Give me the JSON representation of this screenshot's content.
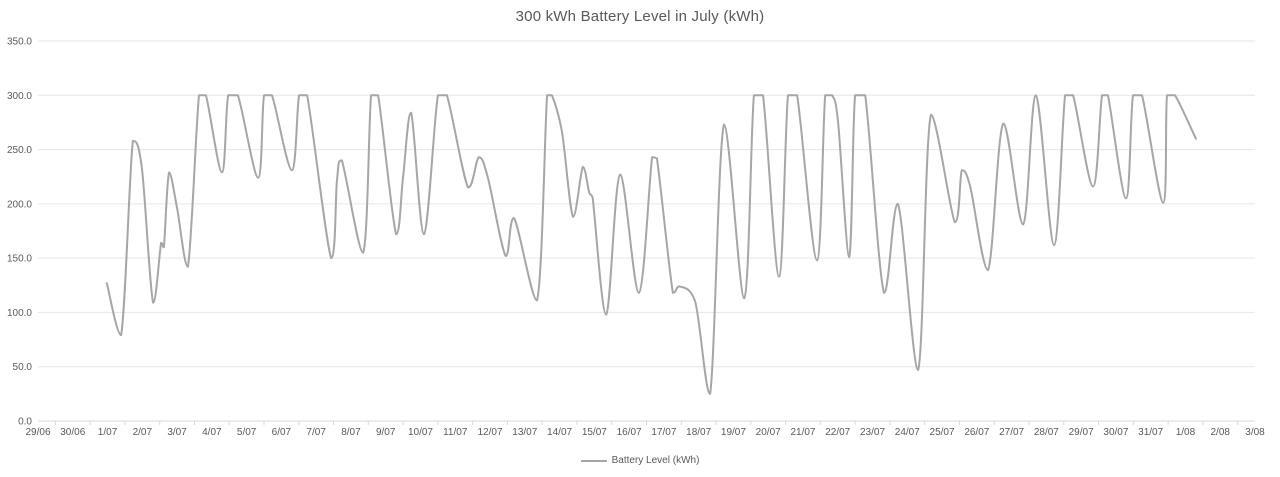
{
  "chart_data": {
    "type": "line",
    "title": "300 kWh Battery Level in July (kWh)",
    "xlabel": "",
    "ylabel": "",
    "ylim": [
      0,
      350
    ],
    "y_tick_labels": [
      "0.0",
      "50.0",
      "100.0",
      "150.0",
      "200.0",
      "250.0",
      "300.0",
      "350.0"
    ],
    "x_tick_labels": [
      "29/06",
      "30/06",
      "1/07",
      "2/07",
      "3/07",
      "4/07",
      "5/07",
      "6/07",
      "7/07",
      "8/07",
      "9/07",
      "10/07",
      "11/07",
      "12/07",
      "13/07",
      "14/07",
      "15/07",
      "16/07",
      "17/07",
      "18/07",
      "19/07",
      "20/07",
      "21/07",
      "22/07",
      "23/07",
      "24/07",
      "25/07",
      "26/07",
      "27/07",
      "28/07",
      "29/07",
      "30/07",
      "31/07",
      "1/08",
      "2/08",
      "3/08"
    ],
    "x_domain_days": [
      0,
      35
    ],
    "grid": true,
    "legend_position": "bottom-center",
    "series": [
      {
        "name": "Battery Level (kWh)",
        "color": "#a6a6a6",
        "x_unit_note": "x = fractional days along category axis; 0 = 29/06 tick, 2 = 1/07 tick",
        "points": [
          [
            1.98,
            127
          ],
          [
            2.39,
            79
          ],
          [
            2.73,
            258
          ],
          [
            2.99,
            232
          ],
          [
            3.31,
            109
          ],
          [
            3.54,
            164
          ],
          [
            3.62,
            160
          ],
          [
            3.77,
            229
          ],
          [
            4.0,
            196
          ],
          [
            4.31,
            142
          ],
          [
            4.63,
            300
          ],
          [
            4.83,
            300
          ],
          [
            5.29,
            229
          ],
          [
            5.47,
            300
          ],
          [
            5.75,
            300
          ],
          [
            6.33,
            224
          ],
          [
            6.5,
            300
          ],
          [
            6.73,
            300
          ],
          [
            7.3,
            231
          ],
          [
            7.51,
            300
          ],
          [
            7.74,
            300
          ],
          [
            8.43,
            150
          ],
          [
            8.6,
            222
          ],
          [
            8.74,
            240
          ],
          [
            9.35,
            155
          ],
          [
            9.58,
            300
          ],
          [
            9.78,
            300
          ],
          [
            10.3,
            172
          ],
          [
            10.5,
            225
          ],
          [
            10.73,
            284
          ],
          [
            11.1,
            172
          ],
          [
            11.5,
            300
          ],
          [
            11.76,
            300
          ],
          [
            12.37,
            215
          ],
          [
            12.68,
            243
          ],
          [
            12.94,
            224
          ],
          [
            13.45,
            152
          ],
          [
            13.69,
            187
          ],
          [
            14.35,
            111
          ],
          [
            14.64,
            300
          ],
          [
            14.78,
            300
          ],
          [
            15.07,
            266
          ],
          [
            15.39,
            188
          ],
          [
            15.67,
            234
          ],
          [
            15.85,
            211
          ],
          [
            15.95,
            206
          ],
          [
            16.34,
            98
          ],
          [
            16.74,
            227
          ],
          [
            17.28,
            118
          ],
          [
            17.66,
            243
          ],
          [
            17.8,
            242
          ],
          [
            18.26,
            118
          ],
          [
            18.45,
            124
          ],
          [
            18.9,
            110
          ],
          [
            19.33,
            25
          ],
          [
            19.73,
            273
          ],
          [
            20.31,
            113
          ],
          [
            20.59,
            300
          ],
          [
            20.85,
            300
          ],
          [
            21.31,
            133
          ],
          [
            21.57,
            300
          ],
          [
            21.83,
            300
          ],
          [
            22.4,
            148
          ],
          [
            22.64,
            300
          ],
          [
            22.84,
            300
          ],
          [
            23.01,
            275
          ],
          [
            23.33,
            151
          ],
          [
            23.5,
            300
          ],
          [
            23.79,
            300
          ],
          [
            24.33,
            118
          ],
          [
            24.73,
            200
          ],
          [
            25.31,
            47
          ],
          [
            25.68,
            282
          ],
          [
            26.37,
            183
          ],
          [
            26.57,
            231
          ],
          [
            26.81,
            216
          ],
          [
            27.32,
            139
          ],
          [
            27.76,
            274
          ],
          [
            28.33,
            181
          ],
          [
            28.7,
            300
          ],
          [
            29.22,
            162
          ],
          [
            29.54,
            300
          ],
          [
            29.77,
            300
          ],
          [
            30.34,
            216
          ],
          [
            30.6,
            300
          ],
          [
            30.77,
            300
          ],
          [
            31.29,
            205
          ],
          [
            31.49,
            300
          ],
          [
            31.75,
            300
          ],
          [
            32.36,
            201
          ],
          [
            32.47,
            300
          ],
          [
            32.7,
            300
          ],
          [
            33.3,
            260
          ]
        ]
      }
    ]
  },
  "legend": {
    "label": "Battery Level (kWh)"
  },
  "colors": {
    "line": "#a6a6a6",
    "gridline": "#e6e6e6",
    "axis": "#d9d9d9",
    "tick_text": "#595959",
    "title_text": "#595959",
    "background": "#ffffff"
  }
}
